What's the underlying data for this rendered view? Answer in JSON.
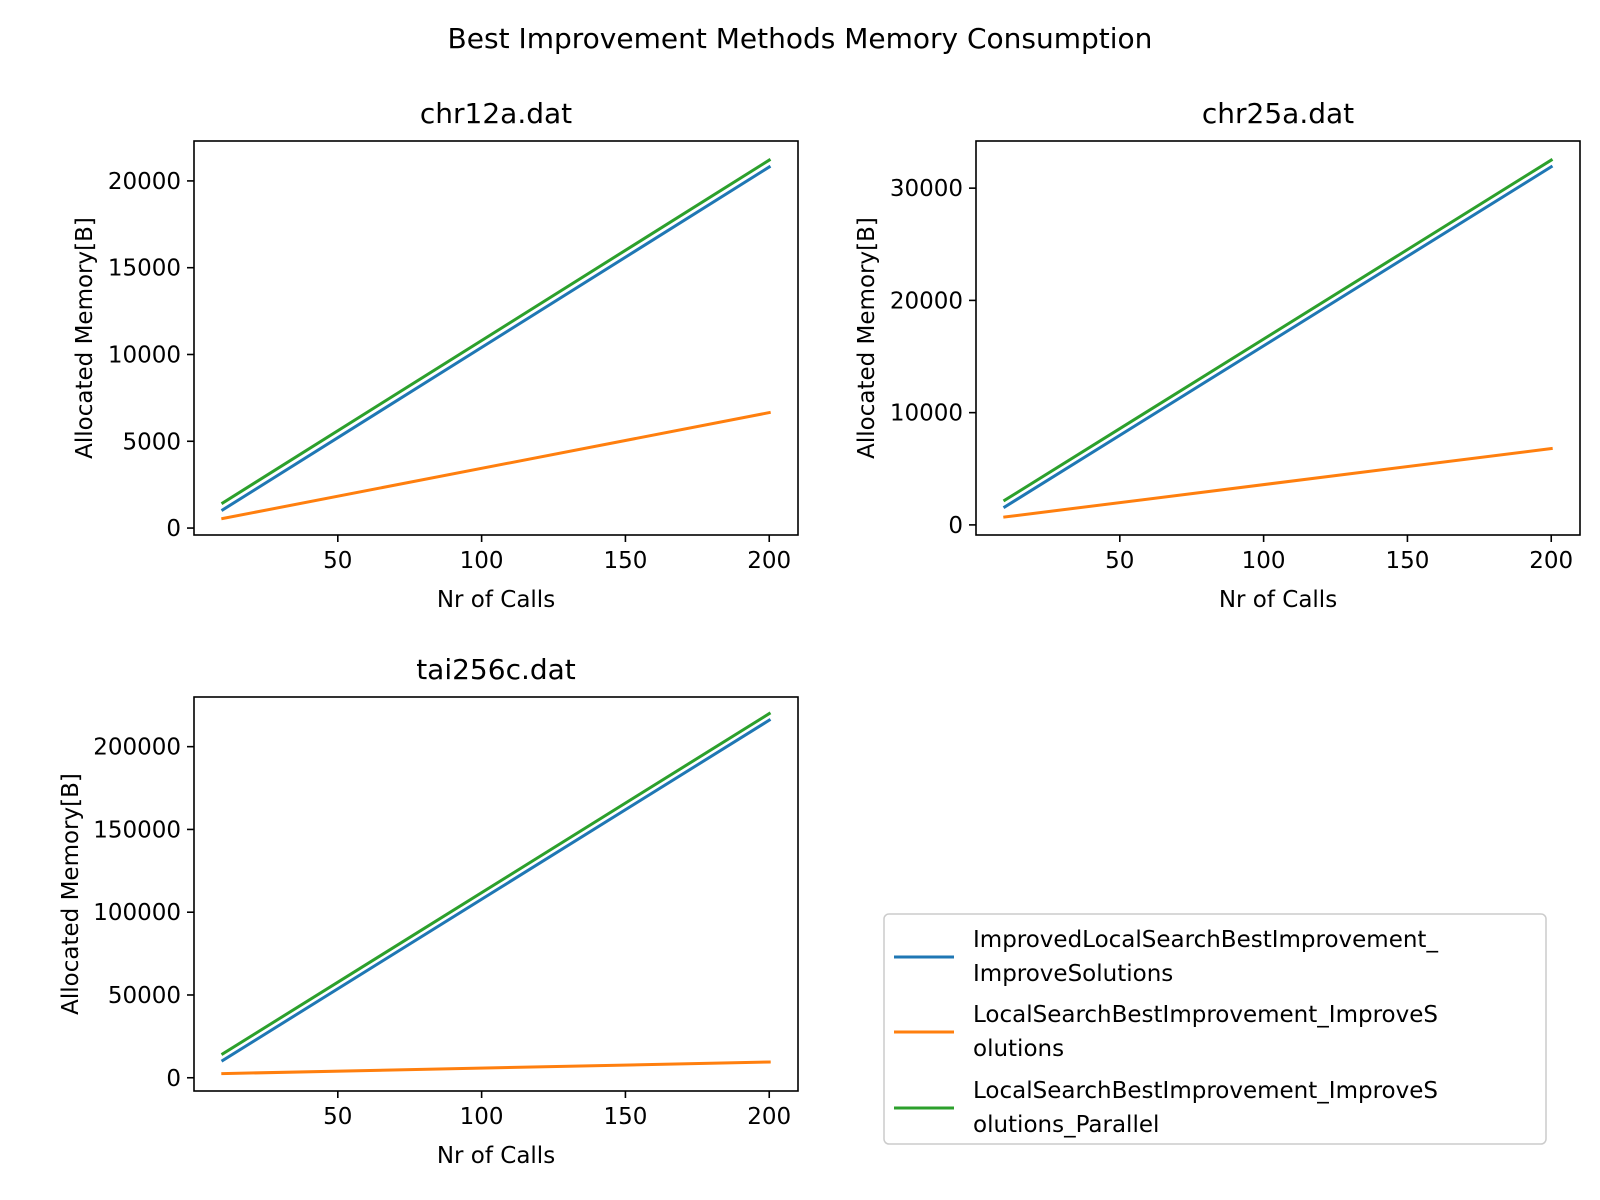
{
  "suptitle": "Best Improvement Methods Memory Consumption",
  "colors": {
    "series_1": "#1f77b4",
    "series_2": "#ff7f0e",
    "series_3": "#2ca02c"
  },
  "legend": {
    "placement": "lower-right",
    "entries": [
      {
        "line1": "ImprovedLocalSearchBestImprovement_",
        "line2": "ImproveSolutions"
      },
      {
        "line1": "LocalSearchBestImprovement_ImproveS",
        "line2": "olutions"
      },
      {
        "line1": "LocalSearchBestImprovement_ImproveS",
        "line2": "olutions_Parallel"
      }
    ]
  },
  "chart_data": [
    {
      "type": "line",
      "title": "chr12a.dat",
      "xlabel": "Nr of Calls",
      "ylabel": "Allocated Memory[B]",
      "xlim": [
        0,
        210
      ],
      "ylim": [
        -400,
        22300
      ],
      "xticks": [
        50,
        100,
        150,
        200
      ],
      "yticks": [
        0,
        5000,
        10000,
        15000,
        20000
      ],
      "grid": false,
      "series": [
        {
          "name": "ImprovedLocalSearchBestImprovement_ImproveSolutions",
          "x": [
            10,
            200
          ],
          "y": [
            1050,
            20800
          ]
        },
        {
          "name": "LocalSearchBestImprovement_ImproveSolutions",
          "x": [
            10,
            200
          ],
          "y": [
            550,
            6650
          ]
        },
        {
          "name": "LocalSearchBestImprovement_ImproveSolutions_Parallel",
          "x": [
            10,
            200
          ],
          "y": [
            1450,
            21200
          ]
        }
      ]
    },
    {
      "type": "line",
      "title": "chr25a.dat",
      "xlabel": "Nr of Calls",
      "ylabel": "Allocated Memory[B]",
      "xlim": [
        0,
        210
      ],
      "ylim": [
        -900,
        34200
      ],
      "xticks": [
        50,
        100,
        150,
        200
      ],
      "yticks": [
        0,
        10000,
        20000,
        30000
      ],
      "grid": false,
      "series": [
        {
          "name": "ImprovedLocalSearchBestImprovement_ImproveSolutions",
          "x": [
            10,
            200
          ],
          "y": [
            1600,
            31900
          ]
        },
        {
          "name": "LocalSearchBestImprovement_ImproveSolutions",
          "x": [
            10,
            200
          ],
          "y": [
            700,
            6800
          ]
        },
        {
          "name": "LocalSearchBestImprovement_ImproveSolutions_Parallel",
          "x": [
            10,
            200
          ],
          "y": [
            2200,
            32500
          ]
        }
      ]
    },
    {
      "type": "line",
      "title": "tai256c.dat",
      "xlabel": "Nr of Calls",
      "ylabel": "Allocated Memory[B]",
      "xlim": [
        0,
        210
      ],
      "ylim": [
        -8000,
        230000
      ],
      "xticks": [
        50,
        100,
        150,
        200
      ],
      "yticks": [
        0,
        50000,
        100000,
        150000,
        200000
      ],
      "grid": false,
      "series": [
        {
          "name": "ImprovedLocalSearchBestImprovement_ImproveSolutions",
          "x": [
            10,
            200
          ],
          "y": [
            10500,
            216000
          ]
        },
        {
          "name": "LocalSearchBestImprovement_ImproveSolutions",
          "x": [
            10,
            200
          ],
          "y": [
            2500,
            9500
          ]
        },
        {
          "name": "LocalSearchBestImprovement_ImproveSolutions_Parallel",
          "x": [
            10,
            200
          ],
          "y": [
            14500,
            220000
          ]
        }
      ]
    }
  ]
}
